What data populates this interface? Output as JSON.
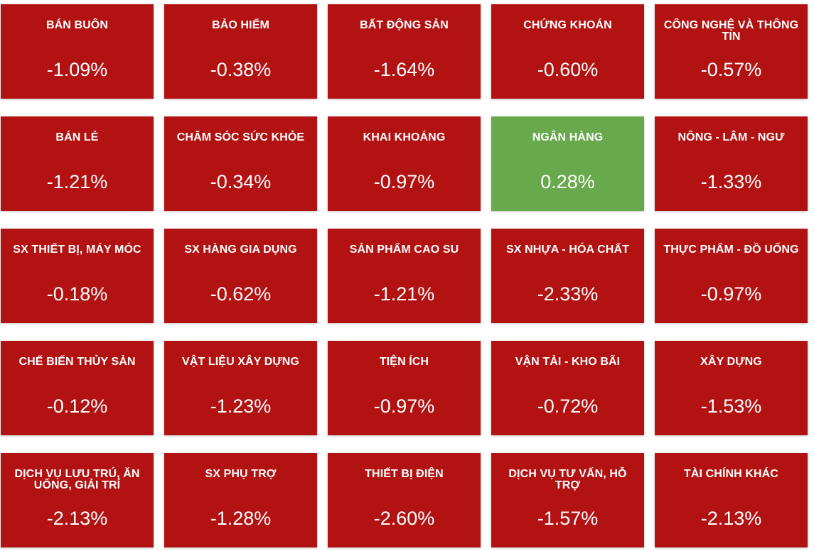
{
  "colors": {
    "down": "#b21212",
    "up": "#68a94d",
    "text": "#ffffff"
  },
  "sectors": [
    {
      "name": "BÁN BUÔN",
      "change": "-1.09%"
    },
    {
      "name": "BẢO HIỂM",
      "change": "-0.38%"
    },
    {
      "name": "BẤT ĐỘNG SẢN",
      "change": "-1.64%"
    },
    {
      "name": "CHỨNG KHOÁN",
      "change": "-0.60%"
    },
    {
      "name": "CÔNG NGHỆ VÀ THÔNG TIN",
      "change": "-0.57%"
    },
    {
      "name": "BÁN LẺ",
      "change": "-1.21%"
    },
    {
      "name": "CHĂM SÓC SỨC KHỎE",
      "change": "-0.34%"
    },
    {
      "name": "KHAI KHOÁNG",
      "change": "-0.97%"
    },
    {
      "name": "NGÂN HÀNG",
      "change": "0.28%"
    },
    {
      "name": "NÔNG - LÂM - NGƯ",
      "change": "-1.33%"
    },
    {
      "name": "SX THIẾT BỊ, MÁY MÓC",
      "change": "-0.18%"
    },
    {
      "name": "SX HÀNG GIA DỤNG",
      "change": "-0.62%"
    },
    {
      "name": "SẢN PHẨM CAO SU",
      "change": "-1.21%"
    },
    {
      "name": "SX NHỰA - HÓA CHẤT",
      "change": "-2.33%"
    },
    {
      "name": "THỰC PHẨM - ĐỒ UỐNG",
      "change": "-0.97%"
    },
    {
      "name": "CHẾ BIẾN THỦY SẢN",
      "change": "-0.12%"
    },
    {
      "name": "VẬT LIỆU XÂY DỰNG",
      "change": "-1.23%"
    },
    {
      "name": "TIỆN ÍCH",
      "change": "-0.97%"
    },
    {
      "name": "VẬN TẢI - KHO BÃI",
      "change": "-0.72%"
    },
    {
      "name": "XÂY DỰNG",
      "change": "-1.53%"
    },
    {
      "name": "DỊCH VỤ LƯU TRÚ, ĂN UỐNG, GIẢI TRÍ",
      "change": "-2.13%"
    },
    {
      "name": "SX PHỤ TRỢ",
      "change": "-1.28%"
    },
    {
      "name": "THIẾT BỊ ĐIỆN",
      "change": "-2.60%"
    },
    {
      "name": "DỊCH VỤ TƯ VẤN, HỖ TRỢ",
      "change": "-1.57%"
    },
    {
      "name": "TÀI CHÍNH KHÁC",
      "change": "-2.13%"
    }
  ]
}
